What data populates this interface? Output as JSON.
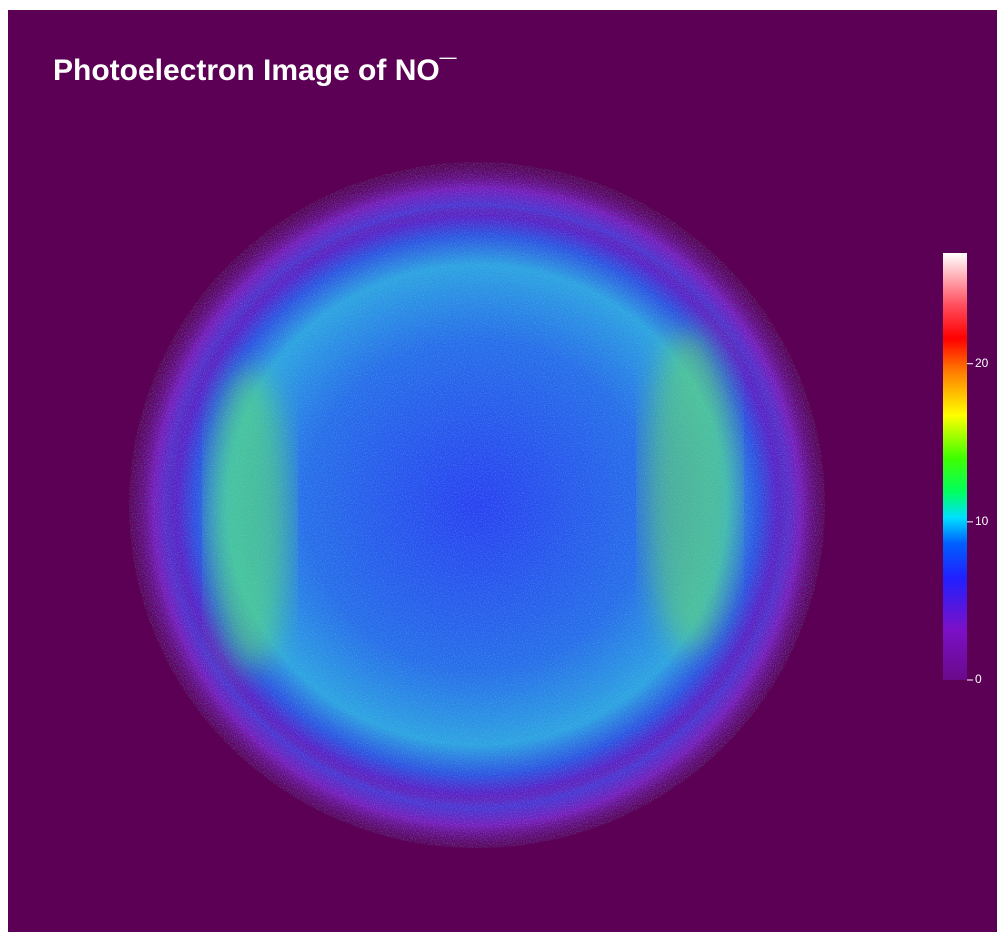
{
  "chart_data": {
    "type": "image",
    "title": "Photoelectron Image of NO¯",
    "colorbar": {
      "clim": [
        0,
        27
      ],
      "ticks": [
        0,
        10,
        20
      ]
    }
  }
}
